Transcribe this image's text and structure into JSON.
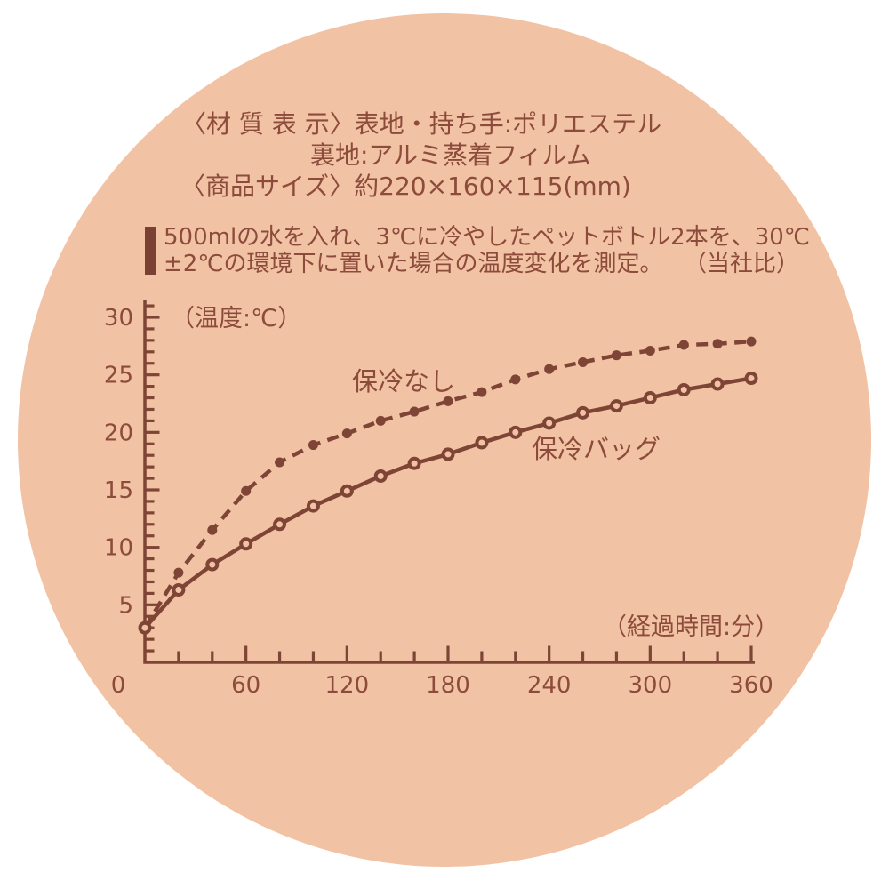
{
  "colors": {
    "page_background": "#ffffff",
    "circle_background": "#f2c2a4",
    "text_brown": "#8c4b3b",
    "chart_brown": "#7e4435",
    "accent_bar": "#7a4033"
  },
  "product_info": {
    "material_line1": "〈材 質 表 示〉表地・持ち手:ポリエステル",
    "material_line2": "裏地:アルミ蒸着フィルム",
    "size_line": "〈商品サイズ〉約220×160×115(mm)"
  },
  "test_note": {
    "line1": "500mlの水を入れ、3℃に冷やしたペットボトル2本を、30℃",
    "line2": "±2℃の環境下に置いた場合の温度変化を測定。",
    "comparison": "（当社比）"
  },
  "chart_data": {
    "type": "line",
    "title": "",
    "xlabel": "（経過時間:分）",
    "ylabel": "（温度:℃）",
    "xlim": [
      0,
      360
    ],
    "ylim": [
      0,
      30
    ],
    "x_ticks": [
      0,
      60,
      120,
      180,
      240,
      300,
      360
    ],
    "x_minor_step": 20,
    "y_ticks": [
      5,
      10,
      15,
      20,
      25,
      30
    ],
    "y_minor_step": 1,
    "grid": false,
    "legend_position": "inline-labels",
    "x": [
      0,
      20,
      40,
      60,
      80,
      100,
      120,
      140,
      160,
      180,
      200,
      220,
      240,
      260,
      280,
      300,
      320,
      340,
      360
    ],
    "series": [
      {
        "name": "保冷なし",
        "line_style": "dashed",
        "marker": "filled-dot",
        "markers_from_index": 1,
        "values": [
          3,
          7.8,
          11.5,
          14.9,
          17.4,
          18.9,
          19.9,
          21.0,
          21.8,
          22.7,
          23.5,
          24.6,
          25.5,
          26.1,
          26.7,
          27.1,
          27.6,
          27.7,
          27.9
        ]
      },
      {
        "name": "保冷バッグ",
        "line_style": "solid",
        "marker": "open-circle",
        "markers_from_index": 0,
        "values": [
          3,
          6.3,
          8.5,
          10.3,
          12.0,
          13.6,
          14.9,
          16.2,
          17.3,
          18.1,
          19.1,
          20.0,
          20.8,
          21.7,
          22.3,
          23.0,
          23.7,
          24.2,
          24.7
        ]
      }
    ],
    "origin_label": "0"
  }
}
